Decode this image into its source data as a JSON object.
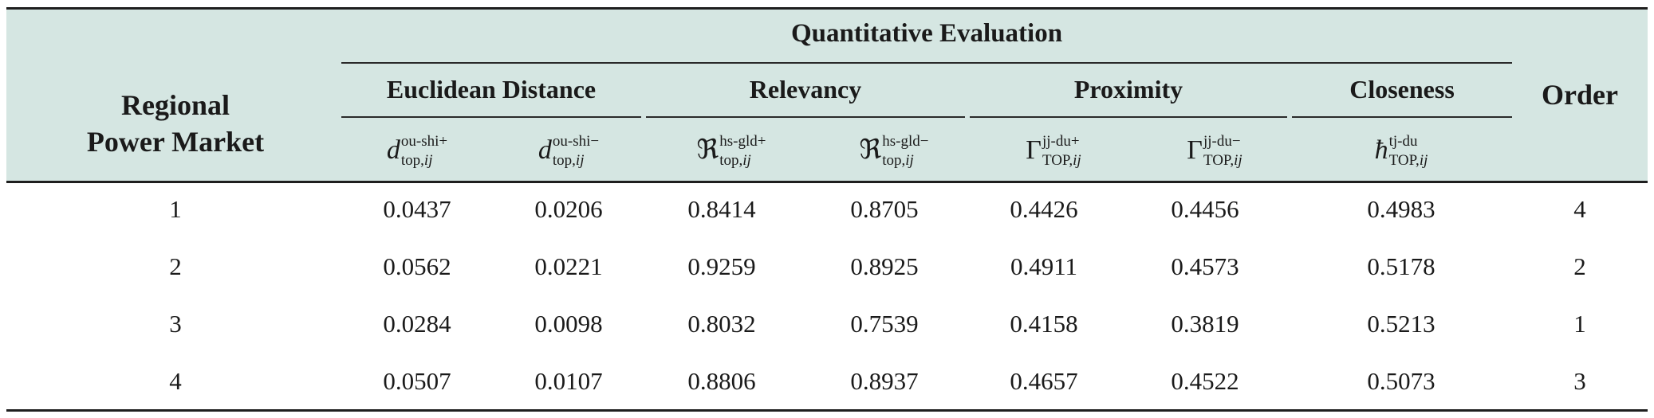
{
  "table": {
    "header": {
      "row_label_line1": "Regional",
      "row_label_line2": "Power Market",
      "span_title": "Quantitative Evaluation",
      "order_label": "Order",
      "groups": [
        {
          "label": "Euclidean Distance"
        },
        {
          "label": "Relevancy"
        },
        {
          "label": "Proximity"
        },
        {
          "label": "Closeness"
        }
      ],
      "symbols": [
        {
          "base": "d",
          "sup": "ou-shi+",
          "sub": "top,",
          "sub_italic": "ij"
        },
        {
          "base": "d",
          "sup": "ou-shi−",
          "sub": "top,",
          "sub_italic": "ij"
        },
        {
          "base": "ℜ",
          "sup": "hs-gld+",
          "sub": "top,",
          "sub_italic": "ij"
        },
        {
          "base": "ℜ",
          "sup": "hs-gld−",
          "sub": "top,",
          "sub_italic": "ij"
        },
        {
          "base": "Γ",
          "sup": "jj-du+",
          "sub": "TOP,",
          "sub_italic": "ij"
        },
        {
          "base": "Γ",
          "sup": "jj-du−",
          "sub": "TOP,",
          "sub_italic": "ij"
        },
        {
          "base": "ħ",
          "sup": "tj-du",
          "sub": "TOP,",
          "sub_italic": "ij"
        }
      ]
    },
    "rows": [
      {
        "market": "1",
        "d_plus": "0.0437",
        "d_minus": "0.0206",
        "r_plus": "0.8414",
        "r_minus": "0.8705",
        "g_plus": "0.4426",
        "g_minus": "0.4456",
        "closeness": "0.4983",
        "order": "4"
      },
      {
        "market": "2",
        "d_plus": "0.0562",
        "d_minus": "0.0221",
        "r_plus": "0.9259",
        "r_minus": "0.8925",
        "g_plus": "0.4911",
        "g_minus": "0.4573",
        "closeness": "0.5178",
        "order": "2"
      },
      {
        "market": "3",
        "d_plus": "0.0284",
        "d_minus": "0.0098",
        "r_plus": "0.8032",
        "r_minus": "0.7539",
        "g_plus": "0.4158",
        "g_minus": "0.3819",
        "closeness": "0.5213",
        "order": "1"
      },
      {
        "market": "4",
        "d_plus": "0.0507",
        "d_minus": "0.0107",
        "r_plus": "0.8806",
        "r_minus": "0.8937",
        "g_plus": "0.4657",
        "g_minus": "0.4522",
        "closeness": "0.5073",
        "order": "3"
      }
    ]
  },
  "colors": {
    "header_background": "#d5e6e2",
    "rule": "#1e1e1e",
    "text": "#1a1a1a"
  }
}
